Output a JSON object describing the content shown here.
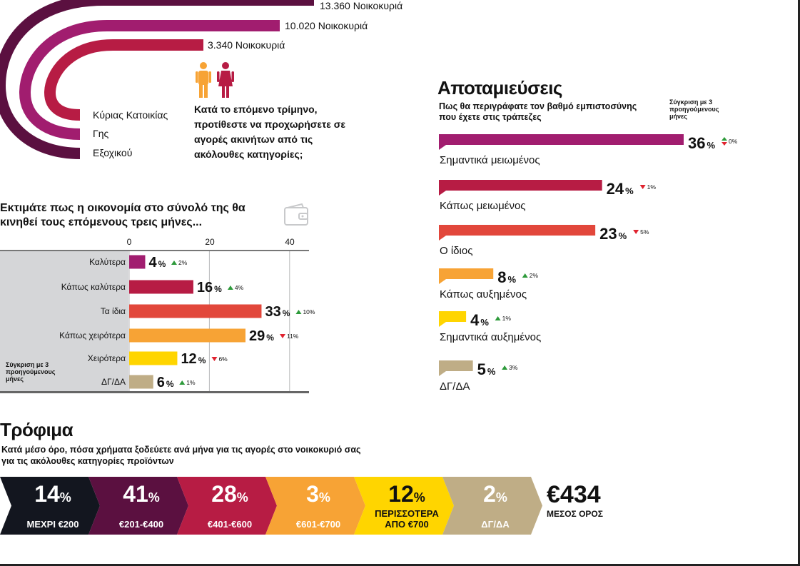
{
  "colors": {
    "purple": "#a11d6f",
    "crimson": "#b71c44",
    "red": "#e2473b",
    "orange": "#f7a335",
    "yellow": "#ffd500",
    "tan": "#bfad86",
    "darkplum": "#5b1040",
    "navy": "#13161f"
  },
  "property": {
    "bars": [
      {
        "value": "13.360 Νοικοκυριά",
        "category": "Εξοχικού",
        "color": "#5b1040"
      },
      {
        "value": "10.020 Νοικοκυριά",
        "category": "Γης",
        "color": "#a11d6f"
      },
      {
        "value": "3.340 Νοικοκυριά",
        "category": "Κύριας Κατοικίας",
        "color": "#b71c44"
      }
    ],
    "question": "Κατά το επόμενο τρίμηνο, προτίθεστε να προχωρήσετε σε αγορές ακινήτων από τις ακόλουθες κατηγορίες;",
    "icon": "man-woman-icon"
  },
  "economy": {
    "question": "Εκτιμάτε πως η οικονομία στο σύνολό της θα κινηθεί τους επόμενους τρεις μήνες...",
    "icon": "wallet-icon",
    "compare_note": "Σύγκριση με 3 προηγούμενους μήνες",
    "chart_data": {
      "type": "bar",
      "orientation": "horizontal",
      "categories": [
        "Καλύτερα",
        "Κάπως καλύτερα",
        "Τα ίδια",
        "Κάπως χειρότερα",
        "Χειρότερα",
        "ΔΓ/ΔΑ"
      ],
      "values": [
        4,
        16,
        33,
        29,
        12,
        6
      ],
      "changes": [
        {
          "dir": "up",
          "value": 2
        },
        {
          "dir": "up",
          "value": 4
        },
        {
          "dir": "up",
          "value": 10
        },
        {
          "dir": "down",
          "value": 11
        },
        {
          "dir": "down",
          "value": 6
        },
        {
          "dir": "up",
          "value": 1
        }
      ],
      "colors": [
        "#a11d6f",
        "#b71c44",
        "#e2473b",
        "#f7a335",
        "#ffd500",
        "#bfad86"
      ],
      "xticks": [
        0,
        20,
        40
      ],
      "xlim": [
        0,
        44
      ],
      "unit": "%",
      "grid": true
    }
  },
  "savings": {
    "title": "Αποταμιεύσεις",
    "question": "Πως θα περιγράφατε τον βαθμό εμπιστοσύνης που έχετε στις τράπεζες",
    "compare_note": "Σύγκριση με 3 προηγούμενους μήνες",
    "chart_data": {
      "type": "bar",
      "orientation": "horizontal",
      "categories": [
        "Σημαντικά μειωμένος",
        "Κάπως μειωμένος",
        "Ο ίδιος",
        "Κάπως αυξημένος",
        "Σημαντικά αυξημένος",
        "ΔΓ/ΔΑ"
      ],
      "values": [
        36,
        24,
        23,
        8,
        4,
        5
      ],
      "changes": [
        {
          "dir": "same",
          "value": 0
        },
        {
          "dir": "down",
          "value": 1
        },
        {
          "dir": "down",
          "value": 5
        },
        {
          "dir": "up",
          "value": 2
        },
        {
          "dir": "up",
          "value": 1
        },
        {
          "dir": "up",
          "value": 3
        }
      ],
      "colors": [
        "#a11d6f",
        "#b71c44",
        "#e2473b",
        "#f7a335",
        "#ffd500",
        "#bfad86"
      ],
      "xlim": [
        0,
        36
      ],
      "unit": "%"
    }
  },
  "food": {
    "title": "Τρόφιμα",
    "question": "Κατά μέσο όρο, πόσα χρήματα ξοδεύετε ανά μήνα για τις αγορές στο νοικοκυριό σας για τις ακόλουθες κατηγορίες προϊόντων",
    "segments": [
      {
        "value": "14",
        "unit": "%",
        "label": "ΜΕΧΡΙ €200",
        "label2": "",
        "color": "#13161f"
      },
      {
        "value": "41",
        "unit": "%",
        "label": "€201-€400",
        "label2": "",
        "color": "#5b1040"
      },
      {
        "value": "28",
        "unit": "%",
        "label": "€401-€600",
        "label2": "",
        "color": "#b71c44"
      },
      {
        "value": "3",
        "unit": "%",
        "label": "€601-€700",
        "label2": "",
        "color": "#f7a335"
      },
      {
        "value": "12",
        "unit": "%",
        "label": "ΠΕΡΙΣΣΟΤΕΡΑ",
        "label2": "ΑΠΟ €700",
        "color": "#ffd500"
      },
      {
        "value": "2",
        "unit": "%",
        "label": "ΔΓ/ΔΑ",
        "label2": "",
        "color": "#bfad86"
      }
    ],
    "average_value": "€434",
    "average_label": "ΜΕΣΟΣ ΟΡΟΣ"
  }
}
